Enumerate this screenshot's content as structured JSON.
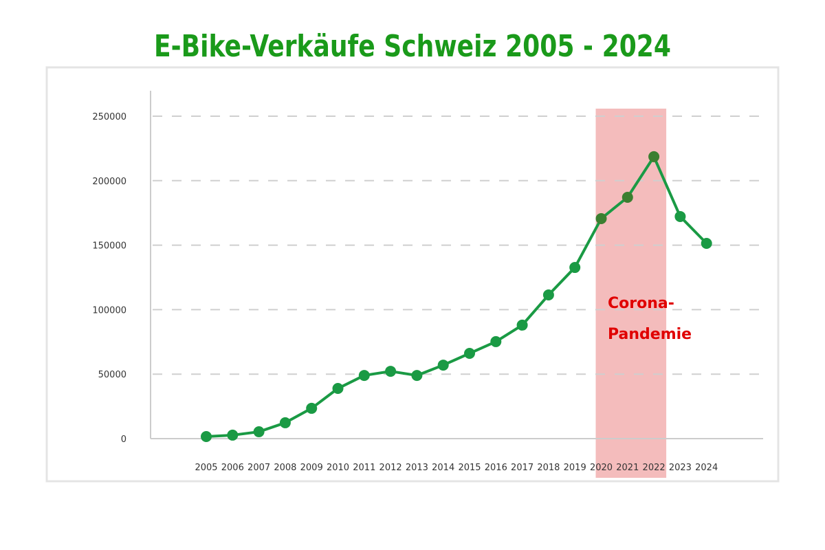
{
  "chart_data": {
    "type": "line",
    "title": "E-Bike-Verkäufe Schweiz 2005 - 2024",
    "xlabel": "",
    "ylabel": "",
    "x": [
      "2005",
      "2006",
      "2007",
      "2008",
      "2009",
      "2010",
      "2011",
      "2012",
      "2013",
      "2014",
      "2015",
      "2016",
      "2017",
      "2018",
      "2019",
      "2020",
      "2021",
      "2022",
      "2023",
      "2024"
    ],
    "series": [
      {
        "name": "E-Bike-Verkäufe",
        "values": [
          1600,
          2700,
          5300,
          12300,
          23500,
          38900,
          49000,
          52200,
          49000,
          57000,
          66100,
          75200,
          88000,
          111400,
          132700,
          170600,
          187100,
          218600,
          172200,
          151400
        ],
        "color": "#1a9a44"
      }
    ],
    "ylim": [
      0,
      250000
    ],
    "yticks": [
      "0",
      "50000",
      "100000",
      "150000",
      "200000",
      "250000"
    ],
    "grid": true,
    "highlight": {
      "label_line1": "Corona-",
      "label_line2": "Pandemie",
      "from": "2020",
      "to": "2022",
      "color": "#f4bcbc",
      "label_color": "#e00000"
    }
  }
}
